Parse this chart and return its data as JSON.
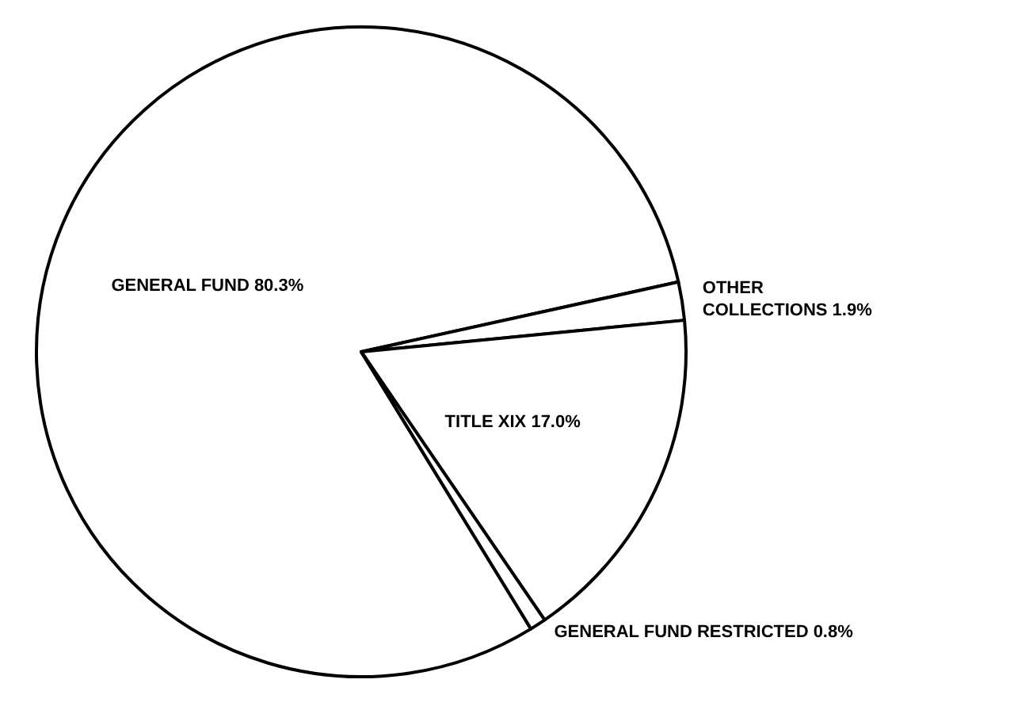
{
  "chart_data": {
    "type": "pie",
    "categories": [
      "GENERAL FUND",
      "OTHER COLLECTIONS",
      "TITLE XIX",
      "GENERAL FUND RESTRICTED"
    ],
    "values": [
      80.3,
      1.9,
      17.0,
      0.8
    ],
    "colors": [
      "#ffffff",
      "#ffffff",
      "#ffffff",
      "#ffffff"
    ],
    "value_labels": [
      "80.3%",
      "1.9%",
      "17.0%",
      "0.8%"
    ]
  }
}
